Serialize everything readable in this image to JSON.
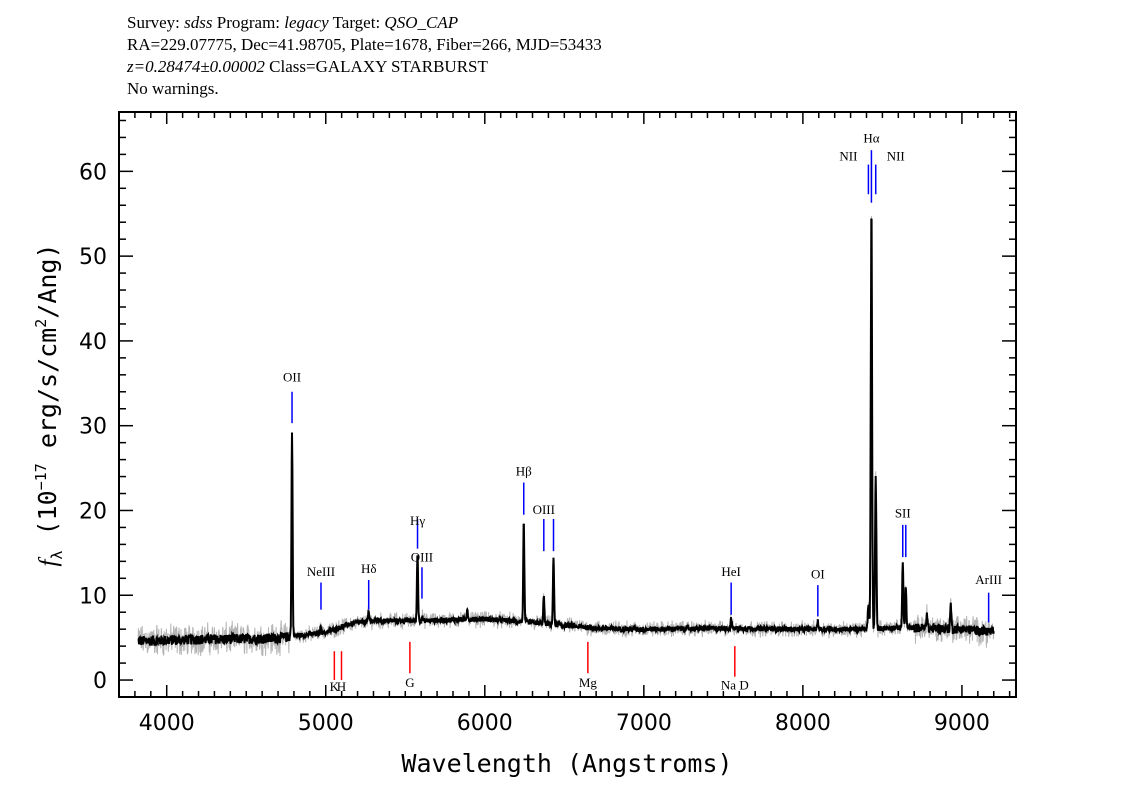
{
  "header": {
    "line1": {
      "survey_label": "Survey: ",
      "survey": "sdss",
      "program_label": " Program: ",
      "program": "legacy",
      "target_label": " Target: ",
      "target": "QSO_CAP"
    },
    "line2": "RA=229.07775, Dec=41.98705, Plate=1678, Fiber=266, MJD=53433",
    "line3": {
      "z": "z=0.28474±0.00002",
      "class": " Class=GALAXY STARBURST"
    },
    "line4": "No warnings."
  },
  "chart_data": {
    "type": "line",
    "title": "",
    "xlabel": "Wavelength (Angstroms)",
    "ylabel": "fλ (10⁻¹⁷ erg/s/cm²/Ang)",
    "ylabel_parts": {
      "f": "f",
      "sub": "λ",
      "pre": " (10",
      "exp1": "−17",
      "mid": " erg/s/cm",
      "exp2": "2",
      "post": "/Ang)"
    },
    "xlim": [
      3700,
      9340
    ],
    "ylim": [
      -2,
      67
    ],
    "xticks": [
      4000,
      5000,
      6000,
      7000,
      8000,
      9000
    ],
    "yticks": [
      0,
      10,
      20,
      30,
      40,
      50,
      60
    ],
    "grid": false,
    "series_colors": {
      "flux": "#000000",
      "error_band": "#b4b4b4",
      "emission_lines": "#0000ff",
      "absorption_lines": "#ff0000"
    },
    "continuum": [
      [
        3820,
        4.6
      ],
      [
        4200,
        4.8
      ],
      [
        4700,
        4.9
      ],
      [
        4800,
        5.2
      ],
      [
        5000,
        5.6
      ],
      [
        5150,
        6.6
      ],
      [
        5300,
        7.0
      ],
      [
        5600,
        7.0
      ],
      [
        6000,
        7.2
      ],
      [
        6300,
        6.8
      ],
      [
        6700,
        6.1
      ],
      [
        7000,
        6.0
      ],
      [
        7500,
        6.1
      ],
      [
        8000,
        6.0
      ],
      [
        8400,
        6.0
      ],
      [
        8600,
        6.2
      ],
      [
        9000,
        6.0
      ],
      [
        9200,
        5.7
      ]
    ],
    "emission_peaks": [
      [
        4788,
        29.0
      ],
      [
        4970,
        6.5
      ],
      [
        5270,
        8.0
      ],
      [
        5577,
        15.0
      ],
      [
        5605,
        7.5
      ],
      [
        5890,
        8.5
      ],
      [
        6245,
        18.5
      ],
      [
        6371,
        9.8
      ],
      [
        6432,
        14.5
      ],
      [
        7549,
        7.2
      ],
      [
        8094,
        7.0
      ],
      [
        8412,
        9.0
      ],
      [
        8431,
        56.0
      ],
      [
        8458,
        24.0
      ],
      [
        8628,
        14.0
      ],
      [
        8647,
        11.0
      ],
      [
        8780,
        8.0
      ],
      [
        8930,
        9.0
      ]
    ],
    "emission_lines": [
      {
        "label": "OII",
        "wavelength": 4788,
        "y_range": [
          30.3,
          34.0
        ],
        "label_y": 35.2
      },
      {
        "label": "NeIII",
        "wavelength": 4970,
        "y_range": [
          8.3,
          11.5
        ],
        "label_y": 12.3
      },
      {
        "label": "Hδ",
        "wavelength": 5270,
        "y_range": [
          8.3,
          11.8
        ],
        "label_y": 12.6
      },
      {
        "label": "Hγ",
        "wavelength": 5577,
        "y_range": [
          15.5,
          19.0
        ],
        "label_y": 18.3
      },
      {
        "label": "OIII",
        "wavelength": 5605,
        "y_range": [
          9.6,
          13.3
        ],
        "label_y": 14.0
      },
      {
        "label": "Hβ",
        "wavelength": 6245,
        "y_range": [
          19.5,
          23.3
        ],
        "label_y": 24.1
      },
      {
        "label": "OIII",
        "wavelength": 6371,
        "y_range": [
          15.2,
          19.0
        ],
        "label_y": 19.6
      },
      {
        "label": "",
        "wavelength": 6432,
        "y_range": [
          15.2,
          19.0
        ],
        "label_y": 19.6
      },
      {
        "label": "HeI",
        "wavelength": 7549,
        "y_range": [
          7.7,
          11.5
        ],
        "label_y": 12.3
      },
      {
        "label": "OI",
        "wavelength": 8094,
        "y_range": [
          7.5,
          11.2
        ],
        "label_y": 12.0
      },
      {
        "label": "NII",
        "wavelength": 8412,
        "y_range": [
          57.3,
          60.8
        ],
        "label_y": 61.3
      },
      {
        "label": "Hα",
        "wavelength": 8431,
        "y_range": [
          56.3,
          62.5
        ],
        "label_y": 63.4
      },
      {
        "label": "NII",
        "wavelength": 8458,
        "y_range": [
          57.3,
          60.8
        ],
        "label_y": 61.3
      },
      {
        "label": "SII",
        "wavelength": 8628,
        "y_range": [
          14.5,
          18.3
        ],
        "label_y": 19.2
      },
      {
        "label": "",
        "wavelength": 8647,
        "y_range": [
          14.5,
          18.3
        ],
        "label_y": 19.2
      },
      {
        "label": "ArIII",
        "wavelength": 9168,
        "y_range": [
          6.8,
          10.3
        ],
        "label_y": 11.3
      }
    ],
    "absorption_lines": [
      {
        "label": "K",
        "wavelength": 5054,
        "y_range": [
          0.0,
          3.4
        ],
        "label_y": -1.3
      },
      {
        "label": "H",
        "wavelength": 5099,
        "y_range": [
          0.0,
          3.4
        ],
        "label_y": -1.3
      },
      {
        "label": "G",
        "wavelength": 5529,
        "y_range": [
          0.8,
          4.5
        ],
        "label_y": -0.8
      },
      {
        "label": "Mg",
        "wavelength": 6648,
        "y_range": [
          0.8,
          4.5
        ],
        "label_y": -0.8
      },
      {
        "label": "Na D",
        "wavelength": 7572,
        "y_range": [
          0.4,
          4.0
        ],
        "label_y": -1.1
      }
    ]
  }
}
